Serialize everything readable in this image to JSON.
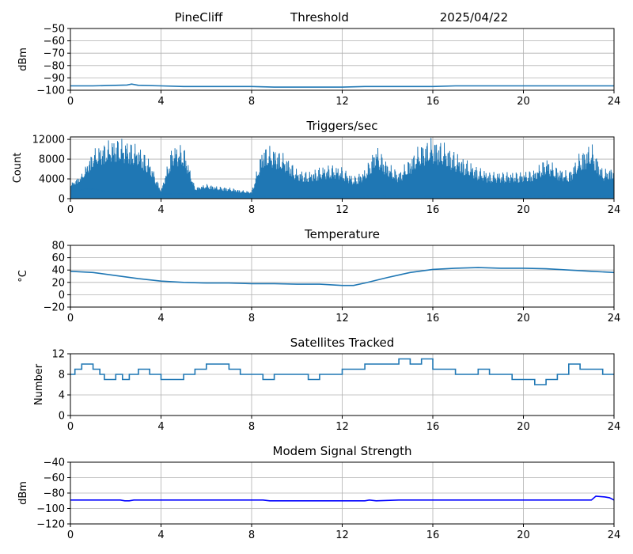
{
  "header": {
    "station": "PineCliff",
    "mode": "Threshold",
    "date": "2025/04/22"
  },
  "chart_data": [
    {
      "type": "line",
      "title": "",
      "xlabel": "",
      "ylabel": "dBm",
      "xlim": [
        0,
        24
      ],
      "ylim": [
        -100,
        -50
      ],
      "xticks": [
        0,
        4,
        8,
        12,
        16,
        20,
        24
      ],
      "yticks": [
        -100,
        -90,
        -80,
        -70,
        -60,
        -50
      ],
      "grid": true,
      "series": [
        {
          "color": "#1f77b4",
          "x": [
            0,
            1,
            2,
            2.5,
            2.7,
            3,
            4,
            5,
            8,
            9,
            12,
            13,
            16,
            17,
            20,
            24
          ],
          "y": [
            -96.5,
            -96.5,
            -96,
            -95.8,
            -95,
            -96,
            -96.5,
            -97,
            -97,
            -97.5,
            -97.5,
            -97,
            -97,
            -96.5,
            -96.5,
            -96.5
          ]
        }
      ]
    },
    {
      "type": "line",
      "title": "Triggers/sec",
      "xlabel": "",
      "ylabel": "Count",
      "xlim": [
        0,
        24
      ],
      "ylim": [
        0,
        12500
      ],
      "xticks": [
        0,
        4,
        8,
        12,
        16,
        20,
        24
      ],
      "yticks": [
        0,
        4000,
        8000,
        12000
      ],
      "grid": true,
      "series": [
        {
          "color": "#1f77b4",
          "x": [
            0,
            0.5,
            1,
            1.5,
            2,
            2.5,
            3,
            3.5,
            4,
            4.5,
            5,
            5.5,
            6,
            6.5,
            7,
            7.5,
            8,
            8.5,
            9,
            9.5,
            10,
            10.5,
            11,
            11.5,
            12,
            12.5,
            13,
            13.5,
            14,
            14.5,
            15,
            15.5,
            16,
            16.5,
            17,
            17.5,
            18,
            18.5,
            19,
            19.5,
            20,
            20.5,
            21,
            21.5,
            22,
            22.5,
            23,
            23.5,
            24
          ],
          "lo": [
            1500,
            1800,
            2000,
            1500,
            1200,
            1000,
            800,
            600,
            1000,
            1000,
            900,
            1000,
            800,
            600,
            500,
            400,
            600,
            500,
            700,
            600,
            400,
            300,
            300,
            300,
            300,
            300,
            400,
            600,
            500,
            400,
            400,
            500,
            400,
            300,
            300,
            300,
            300,
            300,
            300,
            300,
            400,
            500,
            400,
            300,
            300,
            300,
            300,
            500,
            800
          ],
          "hi": [
            3000,
            5000,
            10000,
            11500,
            12500,
            12000,
            11000,
            8000,
            1600,
            11000,
            11000,
            2200,
            3000,
            2500,
            2300,
            1800,
            1400,
            11000,
            10500,
            9000,
            6000,
            5500,
            6500,
            7000,
            6500,
            4500,
            6000,
            11000,
            7500,
            5500,
            8500,
            11500,
            12500,
            11500,
            9500,
            8000,
            6500,
            5500,
            5500,
            5500,
            5500,
            6000,
            8500,
            6500,
            5500,
            9500,
            11500,
            6000,
            6500
          ]
        }
      ]
    },
    {
      "type": "line",
      "title": "Temperature",
      "xlabel": "",
      "ylabel": "°C",
      "xlim": [
        0,
        24
      ],
      "ylim": [
        -20,
        80
      ],
      "xticks": [
        0,
        4,
        8,
        12,
        16,
        20,
        24
      ],
      "yticks": [
        -20,
        0,
        20,
        40,
        60,
        80
      ],
      "grid": true,
      "series": [
        {
          "color": "#1f77b4",
          "x": [
            0,
            1,
            2,
            3,
            4,
            5,
            6,
            7,
            8,
            9,
            10,
            11,
            12,
            12.5,
            13,
            14,
            15,
            16,
            17,
            18,
            19,
            20,
            21,
            22,
            23,
            24
          ],
          "y": [
            38,
            36,
            31,
            26,
            22,
            20,
            19,
            19,
            18,
            18,
            17,
            17,
            15,
            15,
            19,
            28,
            36,
            41,
            43,
            44,
            43,
            43,
            42,
            40,
            38,
            36
          ]
        }
      ]
    },
    {
      "type": "line",
      "title": "Satellites Tracked",
      "xlabel": "",
      "ylabel": "Number",
      "xlim": [
        0,
        24
      ],
      "ylim": [
        0,
        12
      ],
      "xticks": [
        0,
        4,
        8,
        12,
        16,
        20,
        24
      ],
      "yticks": [
        0,
        4,
        8,
        12
      ],
      "grid": true,
      "series": [
        {
          "color": "#1f77b4",
          "x": [
            0,
            0.2,
            0.5,
            1,
            1.3,
            1.5,
            2,
            2.3,
            2.6,
            3,
            3.5,
            4,
            4.5,
            5,
            5.5,
            6,
            6.5,
            7,
            7.5,
            8,
            8.5,
            9,
            9.5,
            10,
            10.5,
            11,
            11.5,
            12,
            12.5,
            13,
            13.5,
            14,
            14.5,
            15,
            15.5,
            16,
            16.5,
            17,
            17.5,
            18,
            18.5,
            19,
            19.5,
            20,
            20.5,
            21,
            21.5,
            22,
            22.5,
            23,
            23.5,
            24
          ],
          "y": [
            8,
            9,
            10,
            9,
            8,
            7,
            8,
            7,
            8,
            9,
            8,
            7,
            7,
            8,
            9,
            10,
            10,
            9,
            8,
            8,
            7,
            8,
            8,
            8,
            7,
            8,
            8,
            9,
            9,
            10,
            10,
            10,
            11,
            10,
            11,
            9,
            9,
            8,
            8,
            9,
            8,
            8,
            7,
            7,
            6,
            7,
            8,
            10,
            9,
            9,
            8,
            8
          ]
        }
      ]
    },
    {
      "type": "line",
      "title": "Modem Signal Strength",
      "xlabel": "",
      "ylabel": "dBm",
      "xlim": [
        0,
        24
      ],
      "ylim": [
        -120,
        -40
      ],
      "xticks": [
        0,
        4,
        8,
        12,
        16,
        20,
        24
      ],
      "yticks": [
        -120,
        -100,
        -80,
        -60,
        -40
      ],
      "grid": true,
      "series": [
        {
          "color": "#0000ff",
          "x": [
            0,
            2.2,
            2.4,
            2.6,
            2.8,
            3,
            8.5,
            8.8,
            13,
            13.2,
            13.5,
            14.5,
            23,
            23.2,
            23.6,
            23.8,
            24
          ],
          "y": [
            -89,
            -89,
            -90,
            -90,
            -89,
            -89,
            -89,
            -90,
            -90,
            -89,
            -90,
            -89,
            -89,
            -84,
            -85,
            -86,
            -89
          ]
        }
      ]
    }
  ]
}
